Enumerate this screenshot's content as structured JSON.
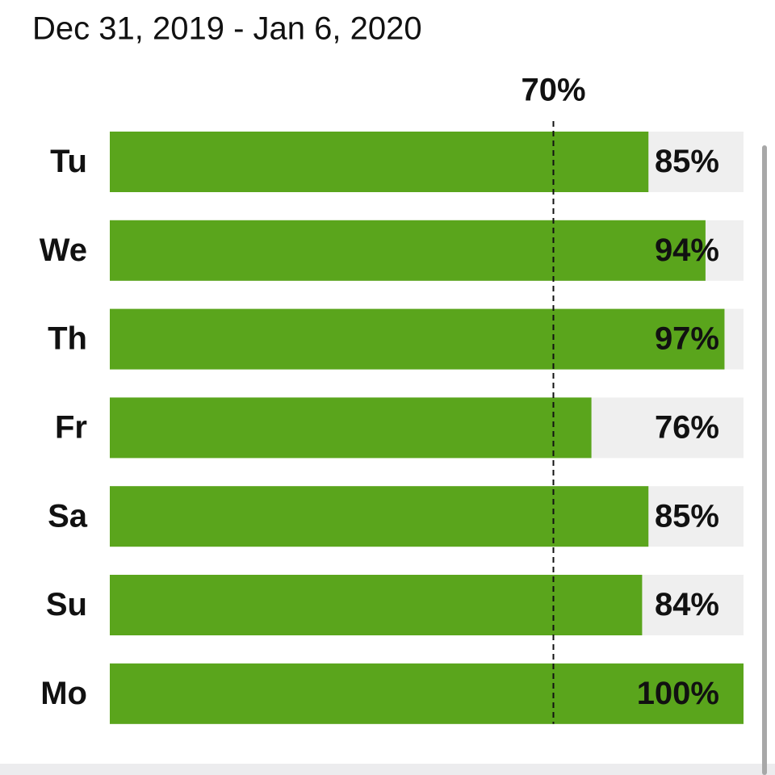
{
  "chart_data": {
    "type": "bar",
    "orientation": "horizontal",
    "title": "Dec 31, 2019 - Jan 6, 2020",
    "categories": [
      "Tu",
      "We",
      "Th",
      "Fr",
      "Sa",
      "Su",
      "Mo"
    ],
    "values": [
      85,
      94,
      97,
      76,
      85,
      84,
      100
    ],
    "value_labels": [
      "85%",
      "94%",
      "97%",
      "76%",
      "85%",
      "84%",
      "100%"
    ],
    "color": "#5aa51c",
    "xlim": [
      0,
      100
    ],
    "reference_line": {
      "value": 70,
      "label": "70%"
    }
  }
}
